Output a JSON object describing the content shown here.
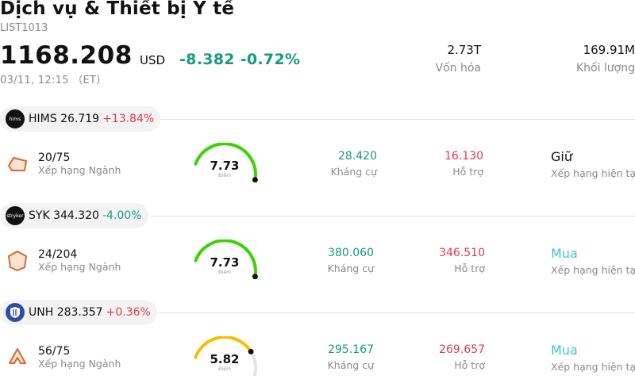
{
  "header": {
    "title": "Dịch vụ & Thiết bị Y tế",
    "code": "LIST1013",
    "price": "1168.208",
    "currency": "USD",
    "change": "-8.382 -0.72%",
    "time": "03/11, 12:15 （ET）",
    "market_cap_value": "2.73T",
    "market_cap_label": "Vốn hóa",
    "volume_value": "169.91M",
    "volume_label": "Khối lượng"
  },
  "stocks": [
    {
      "logo": "hims",
      "logo_color": "#111111",
      "chip_text": "HIMS 26.719",
      "change": "+13.84%",
      "change_direction": "up",
      "rank": "20/75",
      "rank_label": "Xếp hạng Ngành",
      "score": "7.73",
      "score_fraction": 0.773,
      "score_color": "#3ed10a",
      "score_label": "Điểm",
      "resistance": "28.420",
      "resistance_label": "Kháng cự",
      "support": "16.130",
      "support_label": "Hỗ trợ",
      "rating": "Giữ",
      "rating_label": "Xếp hạng hiện tại"
    },
    {
      "logo": "stryker",
      "logo_color": "#111111",
      "chip_text": "SYK 344.320",
      "change": "-4.00%",
      "change_direction": "down",
      "rank": "24/204",
      "rank_label": "Xếp hạng Ngành",
      "score": "7.73",
      "score_fraction": 0.773,
      "score_color": "#3ed10a",
      "score_label": "Điểm",
      "resistance": "380.060",
      "resistance_label": "Kháng cự",
      "support": "346.510",
      "support_label": "Hỗ trợ",
      "rating": "Mua",
      "rating_label": "Xếp hạng hiện tại"
    },
    {
      "logo": "",
      "logo_color": "#2f4fa3",
      "chip_text": "UNH 283.357",
      "change": "+0.36%",
      "change_direction": "up",
      "rank": "56/75",
      "rank_label": "Xếp hạng Ngành",
      "score": "5.82",
      "score_fraction": 0.582,
      "score_color": "#f6c000",
      "score_label": "Điểm",
      "resistance": "295.167",
      "resistance_label": "Kháng cự",
      "support": "269.657",
      "support_label": "Hỗ trợ",
      "rating": "Mua",
      "rating_label": "Xếp hạng hiện tại"
    }
  ]
}
